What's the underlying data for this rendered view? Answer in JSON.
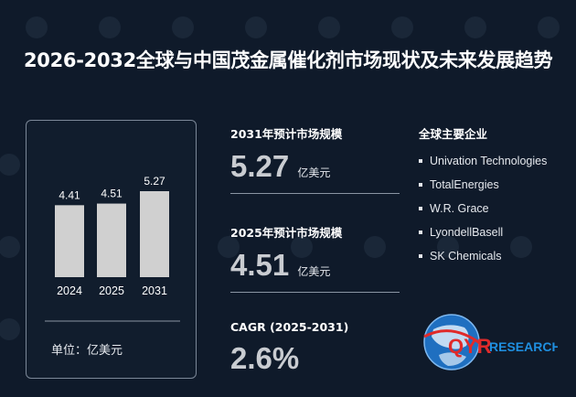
{
  "page": {
    "title": "2026-2032全球与中国茂金属催化剂市场现状及未来发展趋势"
  },
  "chart_data": {
    "type": "bar",
    "categories": [
      "2024",
      "2025",
      "2031"
    ],
    "values": [
      4.41,
      4.51,
      5.27
    ],
    "data_labels": [
      "4.41",
      "4.51",
      "5.27"
    ],
    "ylim": [
      0,
      5.27
    ],
    "unit_label": "单位：亿美元",
    "bar_color": "#d0d0d0"
  },
  "stats": [
    {
      "label": "2031年预计市场规模",
      "value": "5.27",
      "unit": "亿美元"
    },
    {
      "label": "2025年预计市场规模",
      "value": "4.51",
      "unit": "亿美元"
    },
    {
      "label": "CAGR (2025-2031)",
      "value": "2.6%",
      "unit": ""
    }
  ],
  "companies": {
    "title": "全球主要企业",
    "items": [
      "Univation Technologies",
      "TotalEnergies",
      "W.R. Grace",
      "LyondellBasell",
      "SK Chemicals"
    ]
  },
  "logo": {
    "mark": "QYR",
    "text": "RESEARCH",
    "icon": "globe-icon",
    "colors": {
      "blue": "#1f6fc0",
      "red": "#e02a2a"
    }
  }
}
